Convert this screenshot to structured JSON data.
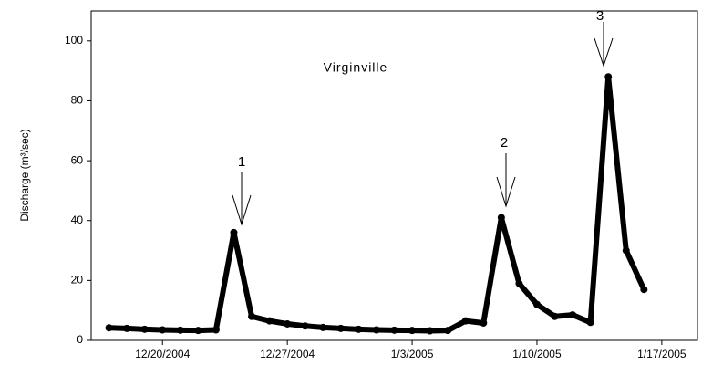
{
  "chart_data": {
    "type": "scatter",
    "title": "Virginville",
    "y_label": "Discharge (m³/sec)",
    "x": [
      "2004-12-17",
      "2004-12-18",
      "2004-12-19",
      "2004-12-20",
      "2004-12-21",
      "2004-12-22",
      "2004-12-23",
      "2004-12-24",
      "2004-12-25",
      "2004-12-26",
      "2004-12-27",
      "2004-12-28",
      "2004-12-29",
      "2004-12-30",
      "2004-12-31",
      "2005-01-01",
      "2005-01-02",
      "2005-01-03",
      "2005-01-04",
      "2005-01-05",
      "2005-01-06",
      "2005-01-07",
      "2005-01-08",
      "2005-01-09",
      "2005-01-10",
      "2005-01-11",
      "2005-01-12",
      "2005-01-13",
      "2005-01-14",
      "2005-01-15",
      "2005-01-16"
    ],
    "series": [
      {
        "color": "#000000",
        "values": [
          4.2,
          4.0,
          3.7,
          3.5,
          3.4,
          3.3,
          3.5,
          36,
          8,
          6.5,
          5.5,
          4.8,
          4.3,
          4.0,
          3.7,
          3.5,
          3.4,
          3.3,
          3.2,
          3.3,
          6.5,
          5.8,
          41,
          19,
          12,
          8,
          8.5,
          6,
          88,
          30,
          17
        ]
      }
    ],
    "annotations": [
      "1",
      "2",
      "3"
    ],
    "xlim": [
      "2004-12-16",
      "2005-01-19"
    ],
    "xticks": [
      {
        "value": "2004-12-20",
        "label": "12/20/2004"
      },
      {
        "value": "2004-12-27",
        "label": "12/27/2004"
      },
      {
        "value": "2005-01-03",
        "label": "1/3/2005"
      },
      {
        "value": "2005-01-10",
        "label": "1/10/2005"
      },
      {
        "value": "2005-01-17",
        "label": "1/17/2005"
      }
    ],
    "ylim": [
      0,
      110
    ],
    "yticks": [
      0,
      20,
      40,
      60,
      80,
      100
    ],
    "grid": false
  }
}
